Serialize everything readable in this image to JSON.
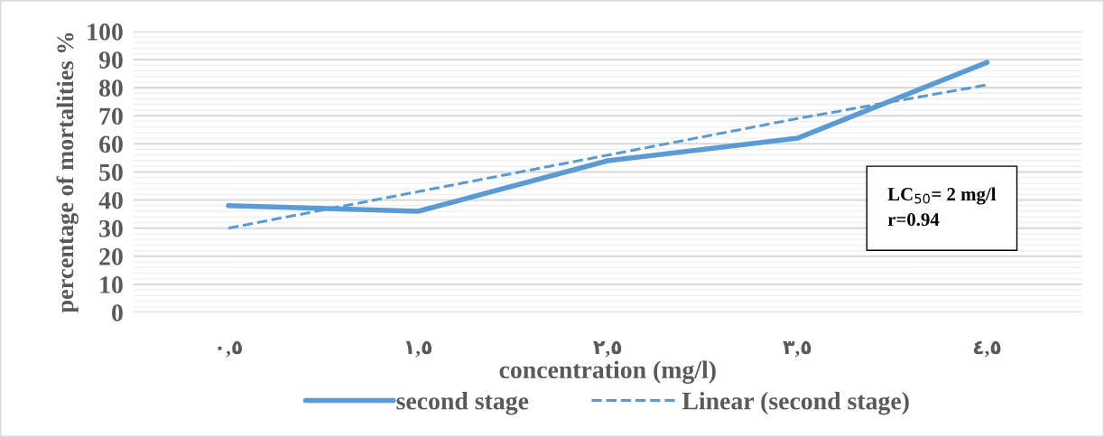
{
  "chart_data": {
    "type": "line",
    "xlabel": "concentration (mg/l)",
    "ylabel": "percentage of mortalities %",
    "categories": [
      "٠,٥",
      "١,٥",
      "٢,٥",
      "٣,٥",
      "٤,٥"
    ],
    "series": [
      {
        "name": "second stage",
        "color": "#5b9bd5",
        "values": [
          38,
          36,
          54,
          62,
          89
        ],
        "line_style": "solid"
      },
      {
        "name": "Linear (second stage)",
        "color": "#5b9bd5",
        "values": [
          30,
          43,
          56,
          69,
          81
        ],
        "line_style": "dashed"
      }
    ],
    "ylim": [
      0,
      100
    ],
    "yticks": [
      0,
      10,
      20,
      30,
      40,
      50,
      60,
      70,
      80,
      90,
      100
    ],
    "grid": "y",
    "legend": "bottom",
    "marker": "none",
    "annotations": [
      "LC$_{50}$= 2 mg/l",
      "r=0.94"
    ]
  }
}
